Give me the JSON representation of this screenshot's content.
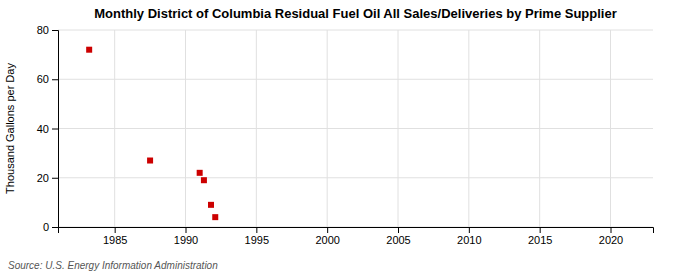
{
  "chart_data": {
    "type": "scatter",
    "title": "Monthly District of Columbia Residual Fuel Oil All Sales/Deliveries by Prime Supplier",
    "ylabel": "Thousand Gallons per Day",
    "annotations": [
      "Source: U.S. Energy Information Administration"
    ],
    "x": [
      1983.2,
      1987.5,
      1991.0,
      1991.3,
      1991.8,
      1992.1
    ],
    "values": [
      72.0,
      27.0,
      22.0,
      19.0,
      9.0,
      4.0
    ],
    "color": "#cc0000",
    "marker": "square",
    "xlim": [
      1981,
      2023
    ],
    "ylim": [
      0,
      80
    ],
    "xticks": [
      1985,
      1990,
      1995,
      2000,
      2005,
      2010,
      2015,
      2020
    ],
    "yticks": [
      0,
      20,
      40,
      60,
      80
    ],
    "grid": true
  }
}
